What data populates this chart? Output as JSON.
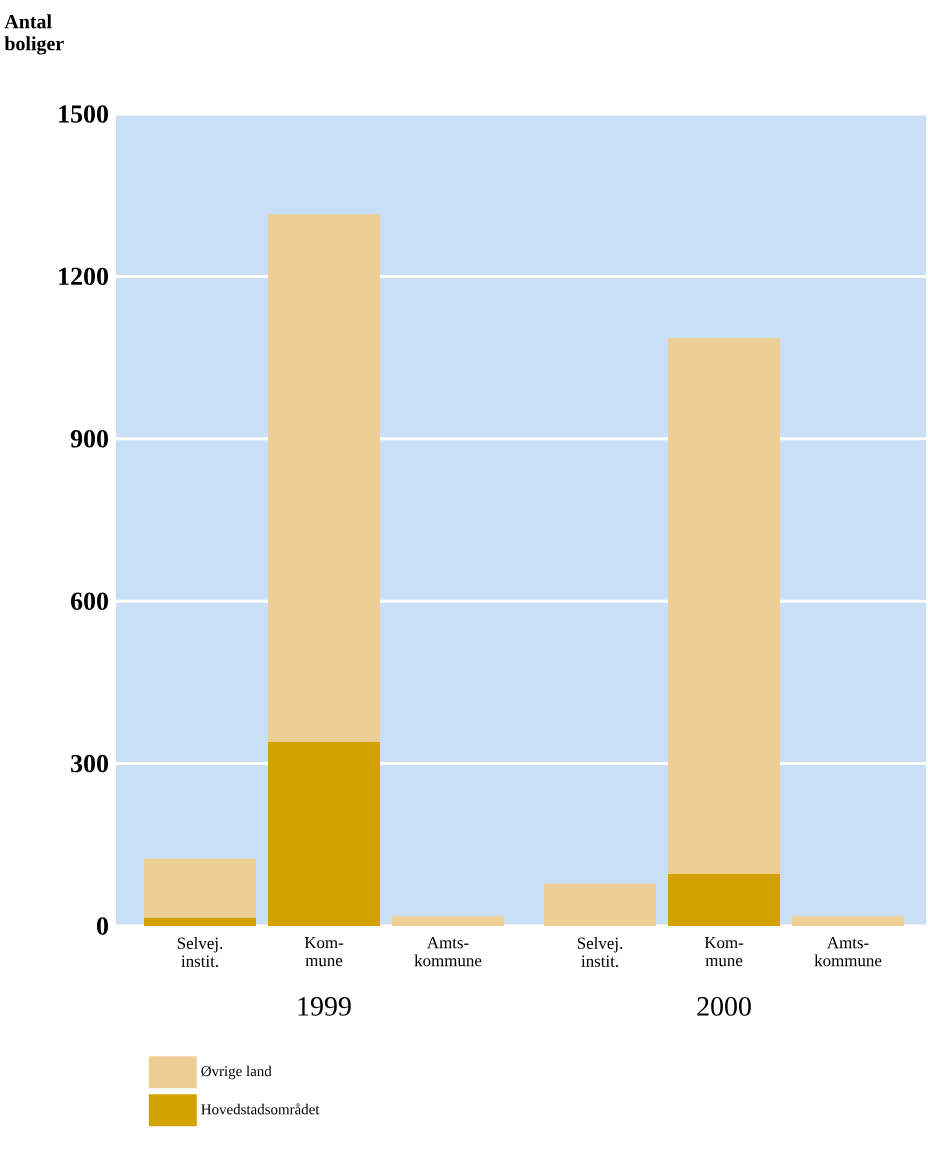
{
  "chart_data": {
    "type": "bar",
    "ylabel": "Antal boliger",
    "categories": [
      "Selvej. instit.",
      "Kom-mune",
      "Amts-kommune",
      "Selvej. instit.",
      "Kom-mune",
      "Amts-kommune"
    ],
    "series": [
      {
        "name": "Hovedstadsområdet",
        "color": "#d4a200",
        "values": [
          15,
          340,
          0,
          0,
          96,
          0
        ]
      },
      {
        "name": "Øvrige land",
        "color": "#edcf95",
        "values": [
          109,
          975,
          18,
          78,
          990,
          18
        ]
      }
    ],
    "stacked": true,
    "ylim": [
      0,
      1500
    ],
    "yticks": [
      0,
      300,
      600,
      900,
      1200,
      1500
    ],
    "grid": "y",
    "legend": "bottom left",
    "annotations": [
      "1999",
      "2000"
    ]
  }
}
